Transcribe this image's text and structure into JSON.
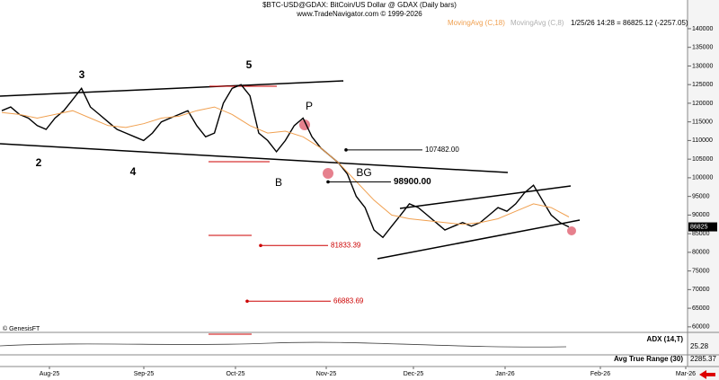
{
  "chart_data": {
    "type": "line",
    "title": "$BTC-USD@GDAX:  BitCoin/US Dollar @ GDAX  (Daily bars)",
    "subtitle": "www.TradeNavigator.com © 1999-2026",
    "quote": "1/25/26 14:28 = 86825.12 (-2257.05)",
    "x_labels": [
      "Aug-25",
      "Sep-25",
      "Oct-25",
      "Nov-25",
      "Dec-25",
      "Jan-26",
      "Feb-26",
      "Mar-26"
    ],
    "ylim": [
      59000,
      143600
    ],
    "yticks": [
      60000,
      65000,
      70000,
      75000,
      80000,
      85000,
      90000,
      95000,
      100000,
      105000,
      110000,
      115000,
      120000,
      125000,
      130000,
      135000,
      140000
    ],
    "last_price": 86825,
    "series": [
      {
        "name": "$BTC-USD@GDAX",
        "color": "#000000",
        "values": [
          118000,
          119000,
          117000,
          116000,
          114000,
          113000,
          116000,
          118000,
          121000,
          124000,
          119000,
          117000,
          115000,
          113000,
          112000,
          111000,
          110000,
          112000,
          115000,
          116000,
          117000,
          118000,
          114000,
          111000,
          112000,
          120000,
          124000,
          125000,
          122000,
          112000,
          110000,
          107000,
          110000,
          114000,
          116000,
          111000,
          108000,
          106000,
          104000,
          101000,
          95000,
          92000,
          86000,
          84000,
          87000,
          90000,
          93000,
          92000,
          90000,
          88000,
          86000,
          87000,
          88000,
          87000,
          88000,
          90000,
          92000,
          91000,
          93000,
          96000,
          98000,
          94000,
          90000,
          88000,
          86825
        ]
      },
      {
        "name": "MovingAvg (C,18)",
        "color": "#f0a050",
        "values": [
          117500,
          117000,
          116000,
          117000,
          118000,
          116000,
          114000,
          113500,
          114500,
          116000,
          116500,
          118000,
          119000,
          117000,
          114000,
          112000,
          112500,
          111000,
          108000,
          104000,
          99000,
          94000,
          90000,
          89000,
          88500,
          88000,
          87500,
          88000,
          89000,
          91000,
          93000,
          92000,
          89500
        ]
      },
      {
        "name": "MovingAvg (C,8)",
        "color": "#c8c8c8",
        "values": []
      }
    ],
    "levels": [
      {
        "value": 107482,
        "label": "107482.00"
      },
      {
        "value": 98900,
        "label": "98900.00"
      },
      {
        "value": 81833.39,
        "label": "81833.39"
      },
      {
        "value": 66883.69,
        "label": "66883.69"
      }
    ],
    "wave_labels": [
      "3",
      "5",
      "2",
      "4",
      "B",
      "P",
      "BG"
    ],
    "credit": "© GenesisFT",
    "indicators": [
      {
        "name": "ADX (14,T)",
        "value": 25.28
      },
      {
        "name": "Avg True Range (30)",
        "value": 2285.37
      }
    ]
  }
}
